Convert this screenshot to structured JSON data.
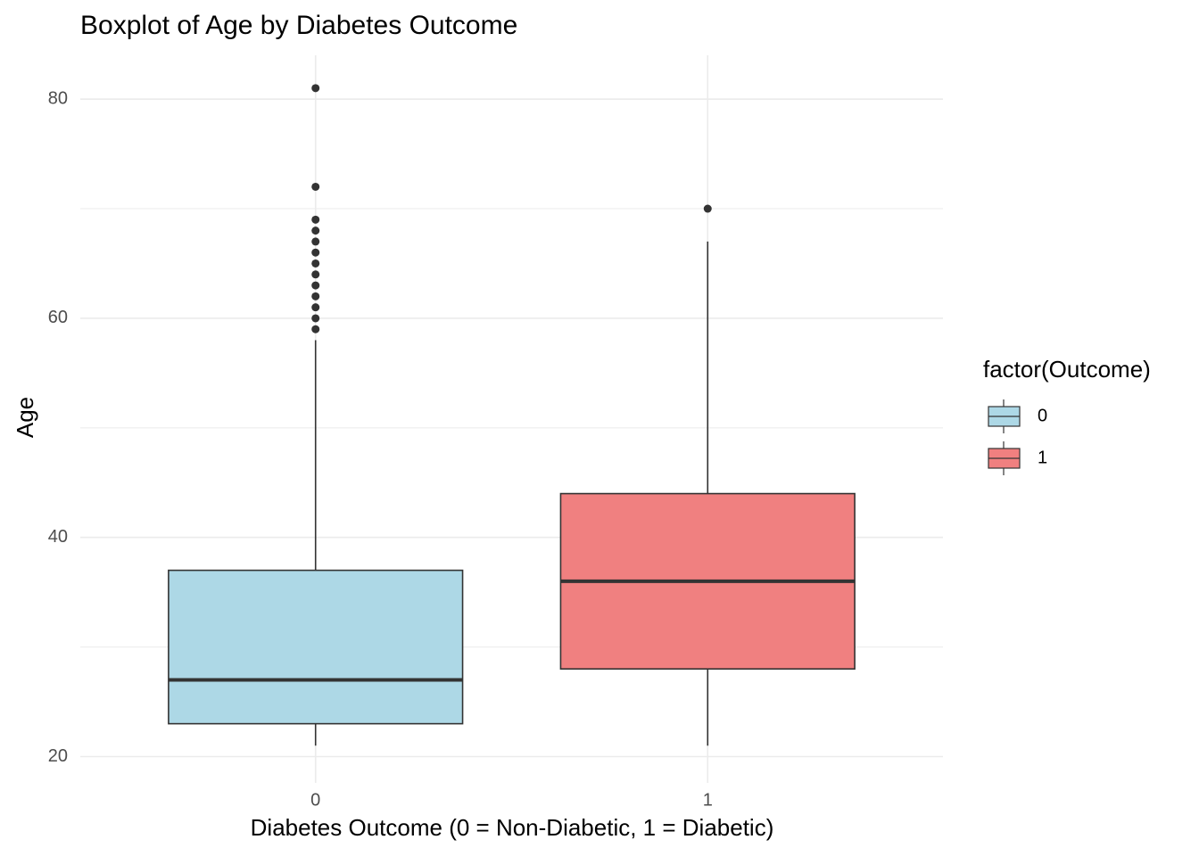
{
  "chart_data": {
    "type": "boxplot",
    "title": "Boxplot of Age by Diabetes Outcome",
    "x_label": "Diabetes Outcome (0 = Non-Diabetic, 1 = Diabetic)",
    "y_label": "Age",
    "categories": [
      "0",
      "1"
    ],
    "legend_title": "factor(Outcome)",
    "series": [
      {
        "name": "0",
        "color": "#add8e6",
        "min": 21,
        "q1": 23,
        "median": 27,
        "q3": 37,
        "max": 58,
        "outliers": [
          59,
          60,
          61,
          62,
          63,
          64,
          65,
          66,
          67,
          68,
          69,
          72,
          81
        ]
      },
      {
        "name": "1",
        "color": "#f08080",
        "min": 21,
        "q1": 28,
        "median": 36,
        "q3": 44,
        "max": 67,
        "outliers": [
          70
        ]
      }
    ],
    "ylim": [
      17.6,
      84
    ],
    "yticks": [
      20,
      40,
      60,
      80
    ],
    "y_minor_ticks": [
      30,
      50,
      70
    ],
    "grid": true,
    "legend": "right"
  }
}
